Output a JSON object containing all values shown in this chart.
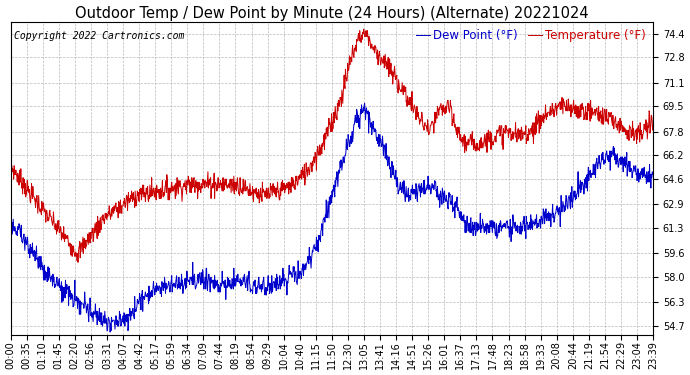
{
  "title": "Outdoor Temp / Dew Point by Minute (24 Hours) (Alternate) 20221024",
  "copyright": "Copyright 2022 Cartronics.com",
  "legend_dew": "Dew Point (°F)",
  "legend_temp": "Temperature (°F)",
  "yticks": [
    54.7,
    56.3,
    58.0,
    59.6,
    61.3,
    62.9,
    64.6,
    66.2,
    67.8,
    69.5,
    71.1,
    72.8,
    74.4
  ],
  "ylim": [
    54.1,
    75.2
  ],
  "xtick_labels": [
    "00:00",
    "00:35",
    "01:10",
    "01:45",
    "02:20",
    "02:56",
    "03:31",
    "04:07",
    "04:42",
    "05:17",
    "05:59",
    "06:34",
    "07:09",
    "07:44",
    "08:19",
    "08:54",
    "09:29",
    "10:04",
    "10:40",
    "11:15",
    "11:50",
    "12:30",
    "13:05",
    "13:41",
    "14:16",
    "14:51",
    "15:26",
    "16:01",
    "16:37",
    "17:13",
    "17:48",
    "18:23",
    "18:58",
    "19:33",
    "20:08",
    "20:44",
    "21:19",
    "21:54",
    "22:29",
    "23:04",
    "23:39"
  ],
  "background_color": "#ffffff",
  "grid_color": "#bbbbbb",
  "temp_color": "#cc0000",
  "dew_color": "#0000cc",
  "title_fontsize": 10.5,
  "axis_fontsize": 7,
  "legend_fontsize": 8.5,
  "copyright_fontsize": 7
}
